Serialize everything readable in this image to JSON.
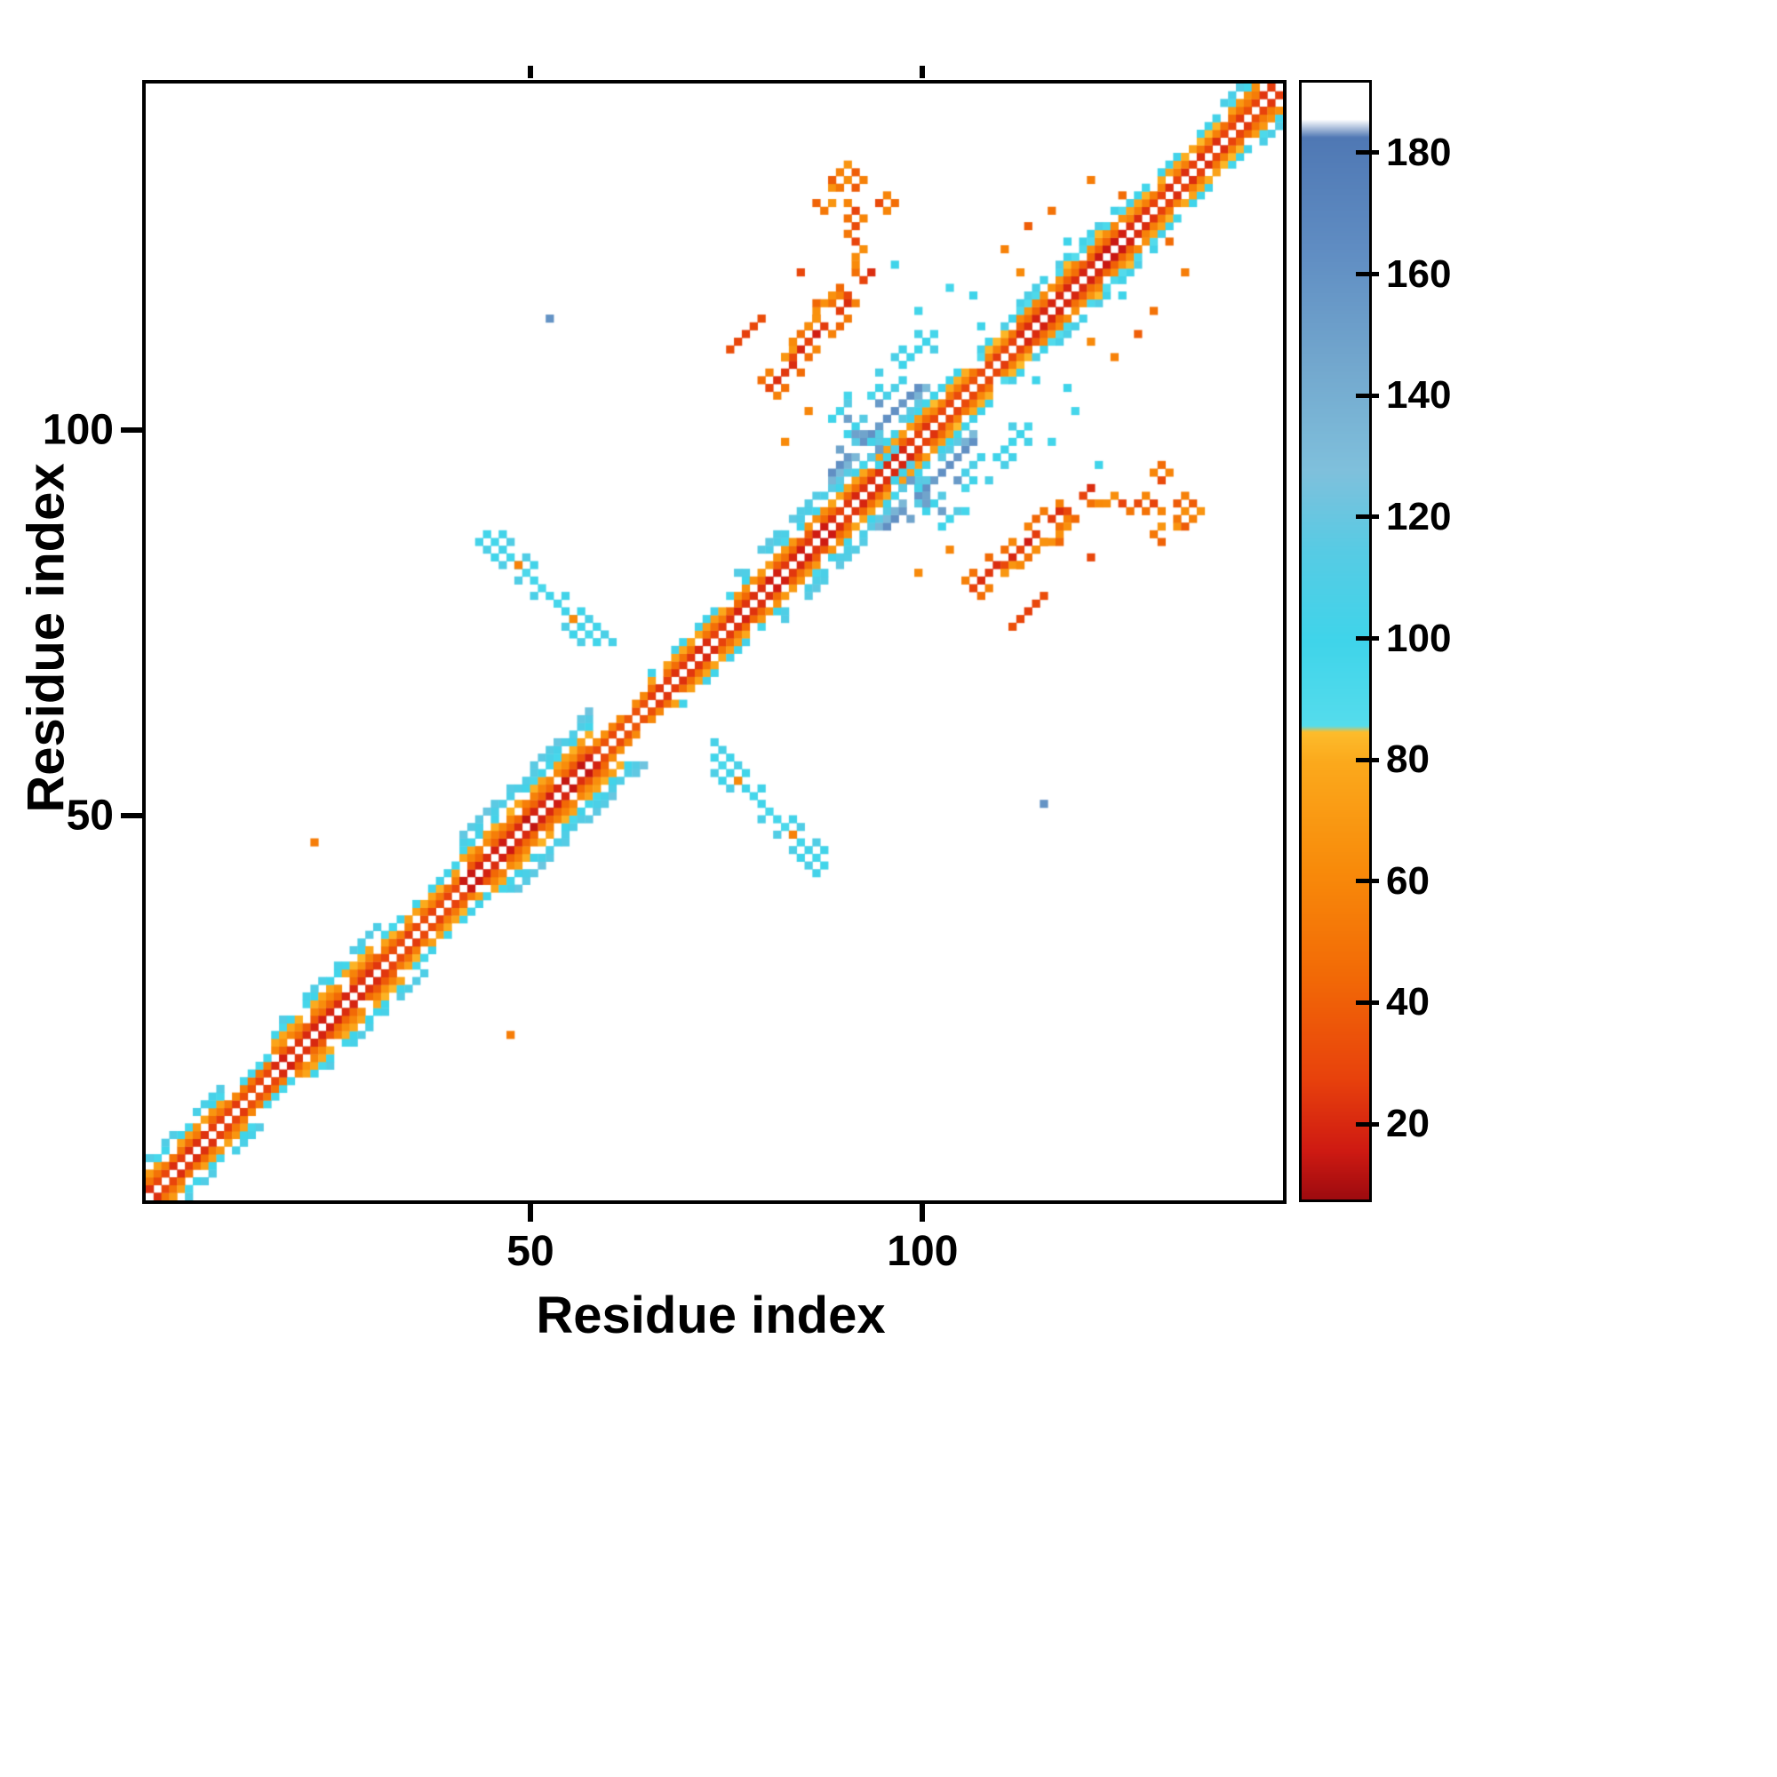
{
  "chart_data": {
    "type": "heatmap",
    "title": "",
    "xlabel": "Residue index",
    "ylabel": "Residue index",
    "x_ticks": [
      50,
      100
    ],
    "y_ticks": [
      50,
      100
    ],
    "n_residues": 145,
    "grid": false,
    "symmetric": true,
    "value_range": [
      8,
      192
    ],
    "colorbar_ticks": [
      20,
      40,
      60,
      80,
      100,
      120,
      140,
      160,
      180
    ],
    "colormap_stops": [
      [
        8,
        "#9e0b0f"
      ],
      [
        16,
        "#cf1a12"
      ],
      [
        28,
        "#e8420c"
      ],
      [
        45,
        "#f26a06"
      ],
      [
        62,
        "#f88a0a"
      ],
      [
        80,
        "#fba91c"
      ],
      [
        85,
        "#fdbc2c"
      ],
      [
        86,
        "#55dcec"
      ],
      [
        100,
        "#3fd4ea"
      ],
      [
        115,
        "#57cbe4"
      ],
      [
        128,
        "#7fc0dc"
      ],
      [
        145,
        "#73a8ce"
      ],
      [
        165,
        "#5f8cc2"
      ],
      [
        183,
        "#4f78b4"
      ],
      [
        186,
        "#ffffff"
      ],
      [
        192,
        "#ffffff"
      ]
    ],
    "seed": 42,
    "diagonal_band_segments": [
      {
        "from": 1,
        "to": 10,
        "bands": [
          [
            1,
            25
          ],
          [
            2,
            50
          ],
          [
            3,
            72
          ],
          [
            4,
            98
          ],
          [
            5,
            108
          ]
        ]
      },
      {
        "from": 11,
        "to": 16,
        "bands": [
          [
            1,
            30
          ],
          [
            2,
            55
          ],
          [
            3,
            95
          ]
        ]
      },
      {
        "from": 17,
        "to": 30,
        "bands": [
          [
            1,
            20
          ],
          [
            2,
            42
          ],
          [
            3,
            62
          ],
          [
            4,
            80
          ],
          [
            5,
            98
          ],
          [
            6,
            110
          ]
        ]
      },
      {
        "from": 31,
        "to": 40,
        "bands": [
          [
            1,
            28
          ],
          [
            2,
            52
          ],
          [
            3,
            78
          ],
          [
            4,
            100
          ]
        ]
      },
      {
        "from": 41,
        "to": 57,
        "bands": [
          [
            1,
            18
          ],
          [
            2,
            40
          ],
          [
            3,
            60
          ],
          [
            4,
            78
          ],
          [
            5,
            98
          ],
          [
            6,
            110
          ],
          [
            7,
            118
          ]
        ]
      },
      {
        "from": 58,
        "to": 64,
        "bands": [
          [
            1,
            35
          ],
          [
            2,
            62
          ]
        ]
      },
      {
        "from": 65,
        "to": 74,
        "bands": [
          [
            1,
            24
          ],
          [
            2,
            50
          ],
          [
            3,
            76
          ],
          [
            4,
            100
          ]
        ]
      },
      {
        "from": 75,
        "to": 87,
        "bands": [
          [
            1,
            20
          ],
          [
            2,
            44
          ],
          [
            3,
            68
          ],
          [
            4,
            96
          ],
          [
            5,
            106
          ],
          [
            6,
            116
          ]
        ]
      },
      {
        "from": 88,
        "to": 100,
        "bands": [
          [
            1,
            24
          ],
          [
            2,
            48
          ],
          [
            3,
            74
          ],
          [
            4,
            100
          ],
          [
            5,
            116
          ],
          [
            6,
            135
          ],
          [
            7,
            158
          ]
        ]
      },
      {
        "from": 101,
        "to": 111,
        "bands": [
          [
            1,
            30
          ],
          [
            2,
            56
          ],
          [
            3,
            84
          ],
          [
            4,
            104
          ]
        ]
      },
      {
        "from": 112,
        "to": 125,
        "bands": [
          [
            1,
            20
          ],
          [
            2,
            44
          ],
          [
            3,
            64
          ],
          [
            4,
            88
          ],
          [
            5,
            106
          ]
        ]
      },
      {
        "from": 126,
        "to": 137,
        "bands": [
          [
            1,
            26
          ],
          [
            2,
            54
          ],
          [
            3,
            80
          ],
          [
            4,
            100
          ]
        ]
      },
      {
        "from": 138,
        "to": 144,
        "bands": [
          [
            1,
            28
          ],
          [
            2,
            50
          ],
          [
            3,
            70
          ],
          [
            4,
            95
          ],
          [
            5,
            108
          ]
        ]
      }
    ],
    "off_diagonal_streaks": [
      {
        "x0": 44,
        "y0": 87,
        "x1": 59,
        "y1": 72,
        "thickness": 3,
        "values": [
          100,
          108,
          95,
          103
        ],
        "sparsity": 0.3
      },
      {
        "x0": 80,
        "y0": 106,
        "x1": 93,
        "y1": 121,
        "thickness": 3,
        "values": [
          28,
          46,
          20,
          58
        ],
        "sparsity": 0.25
      },
      {
        "x0": 82,
        "y0": 110,
        "x1": 92,
        "y1": 124,
        "thickness": 1,
        "values": [
          66,
          74
        ],
        "sparsity": 0.4
      },
      {
        "x0": 90,
        "y0": 126,
        "x1": 95,
        "y1": 131,
        "thickness": 2,
        "values": [
          48,
          62,
          32
        ],
        "sparsity": 0.25
      },
      {
        "x0": 87,
        "y0": 129,
        "x1": 91,
        "y1": 134,
        "thickness": 2,
        "values": [
          56,
          40,
          66
        ],
        "sparsity": 0.3
      },
      {
        "x0": 89,
        "y0": 103,
        "x1": 98,
        "y1": 94,
        "thickness": 3,
        "values": [
          100,
          112,
          150,
          104
        ],
        "sparsity": 0.3
      },
      {
        "x0": 93,
        "y0": 105,
        "x1": 101,
        "y1": 113,
        "thickness": 2,
        "values": [
          98,
          106
        ],
        "sparsity": 0.4
      },
      {
        "x0": 75,
        "y0": 111,
        "x1": 79,
        "y1": 115,
        "thickness": 1,
        "values": [
          30,
          52
        ],
        "sparsity": 0.3
      }
    ],
    "points": [
      [
        52,
        115,
        160
      ],
      [
        22,
        47,
        55
      ],
      [
        85,
        103,
        60
      ],
      [
        82,
        99,
        62
      ],
      [
        103,
        119,
        96
      ],
      [
        107,
        114,
        100
      ],
      [
        106,
        118,
        100
      ],
      [
        91,
        100,
        150
      ],
      [
        94,
        104,
        155
      ],
      [
        89,
        98,
        148
      ],
      [
        88,
        102,
        100
      ],
      [
        90,
        105,
        96
      ],
      [
        48,
        83,
        58
      ],
      [
        55,
        76,
        62
      ],
      [
        99,
        116,
        98
      ],
      [
        96,
        122,
        100
      ],
      [
        84,
        121,
        30
      ],
      [
        86,
        117,
        44
      ],
      [
        110,
        124,
        58
      ],
      [
        113,
        127,
        40
      ],
      [
        112,
        121,
        62
      ],
      [
        116,
        129,
        50
      ],
      [
        118,
        125,
        100
      ],
      [
        121,
        133,
        55
      ],
      [
        125,
        131,
        46
      ]
    ]
  }
}
